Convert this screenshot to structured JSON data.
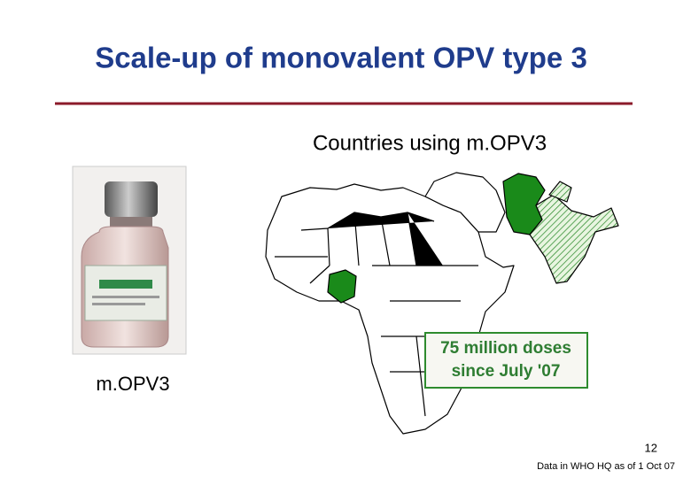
{
  "header": {
    "title": "Scale-up of monovalent OPV type 3"
  },
  "map": {
    "title": "Countries using m.OPV3",
    "callout": [
      "75 million doses",
      "since July '07"
    ]
  },
  "vial": {
    "label": "m.OPV3"
  },
  "footer": {
    "page": "12",
    "source": "Data in WHO HQ as of 1 Oct 07"
  }
}
